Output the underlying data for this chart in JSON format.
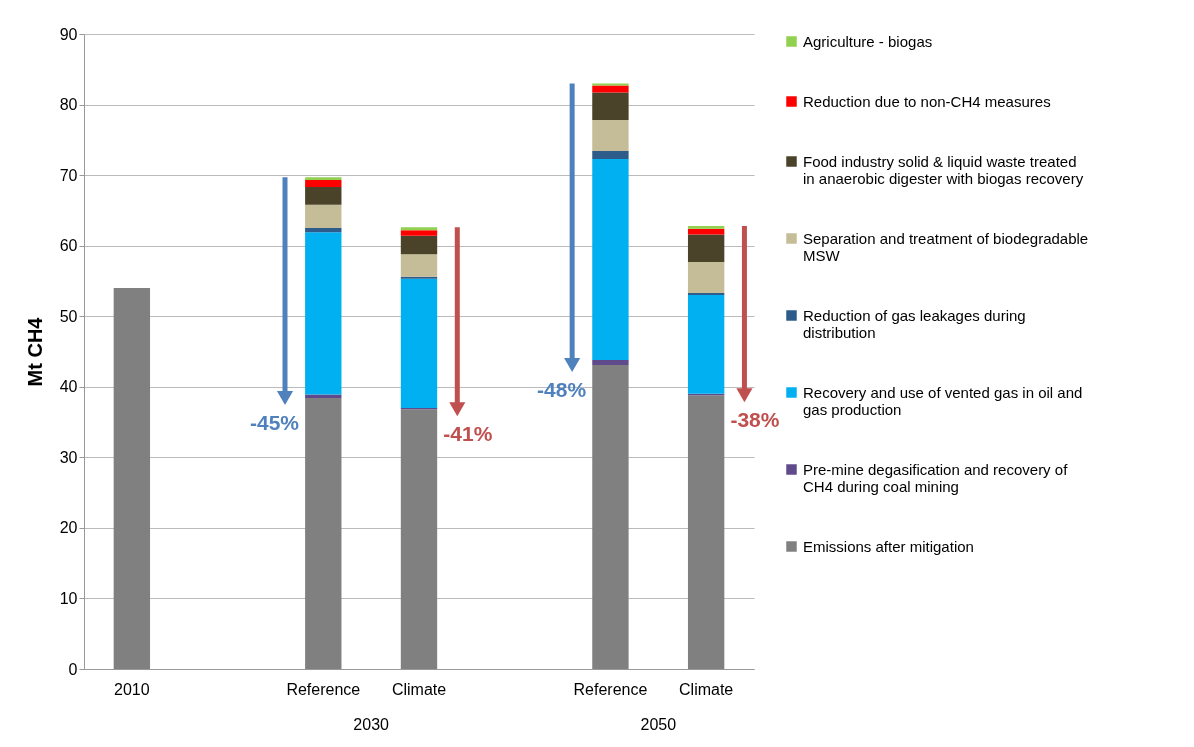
{
  "chart_data": {
    "type": "bar",
    "stacked": true,
    "ylabel": "Mt CH4",
    "categories": [
      "2010",
      null,
      "Reference",
      "Climate",
      null,
      "Reference",
      "Climate"
    ],
    "series": [
      {
        "name": "Emissions after mitigation",
        "color": "#808080",
        "values": [
          54,
          null,
          38.4,
          36.8,
          null,
          43.1,
          38.8
        ]
      },
      {
        "name": "Pre-mine degasification and recovery of CH4 during coal mining",
        "color": "#5f4b8b",
        "values": [
          null,
          null,
          0.5,
          0.2,
          null,
          0.7,
          0.2
        ]
      },
      {
        "name": "Recovery and use of vented gas in oil and gas production",
        "color": "#00b0f0",
        "values": [
          null,
          null,
          23,
          18.3,
          null,
          28.5,
          14
        ]
      },
      {
        "name": "Reduction of gas leakages during distribution",
        "color": "#2e5c8a",
        "values": [
          null,
          null,
          0.6,
          0.3,
          null,
          1.1,
          0.3
        ]
      },
      {
        "name": "Separation and treatment of biodegradable MSW",
        "color": "#c4bd97",
        "values": [
          null,
          null,
          3.3,
          3.2,
          null,
          4.4,
          4.4
        ]
      },
      {
        "name": "Food industry solid & liquid waste treated in anaerobic digester with biogas recovery",
        "color": "#4a432a",
        "values": [
          null,
          null,
          2.5,
          2.6,
          null,
          3.9,
          3.9
        ]
      },
      {
        "name": "Reduction due to non-CH4 measures",
        "color": "#ff0000",
        "values": [
          null,
          null,
          1,
          0.8,
          null,
          1,
          0.8
        ]
      },
      {
        "name": "Agriculture - biogas",
        "color": "#92d050",
        "values": [
          null,
          null,
          0.4,
          0.4,
          null,
          0.3,
          0.4
        ]
      }
    ],
    "ylim": [
      0,
      90
    ],
    "yticks": [
      0,
      10,
      20,
      30,
      40,
      50,
      60,
      70,
      80,
      90
    ],
    "grid": "y",
    "legend": "right",
    "annotations": [
      "2030",
      "2050",
      "-45%",
      "-41%",
      "-48%",
      "-38%"
    ]
  }
}
